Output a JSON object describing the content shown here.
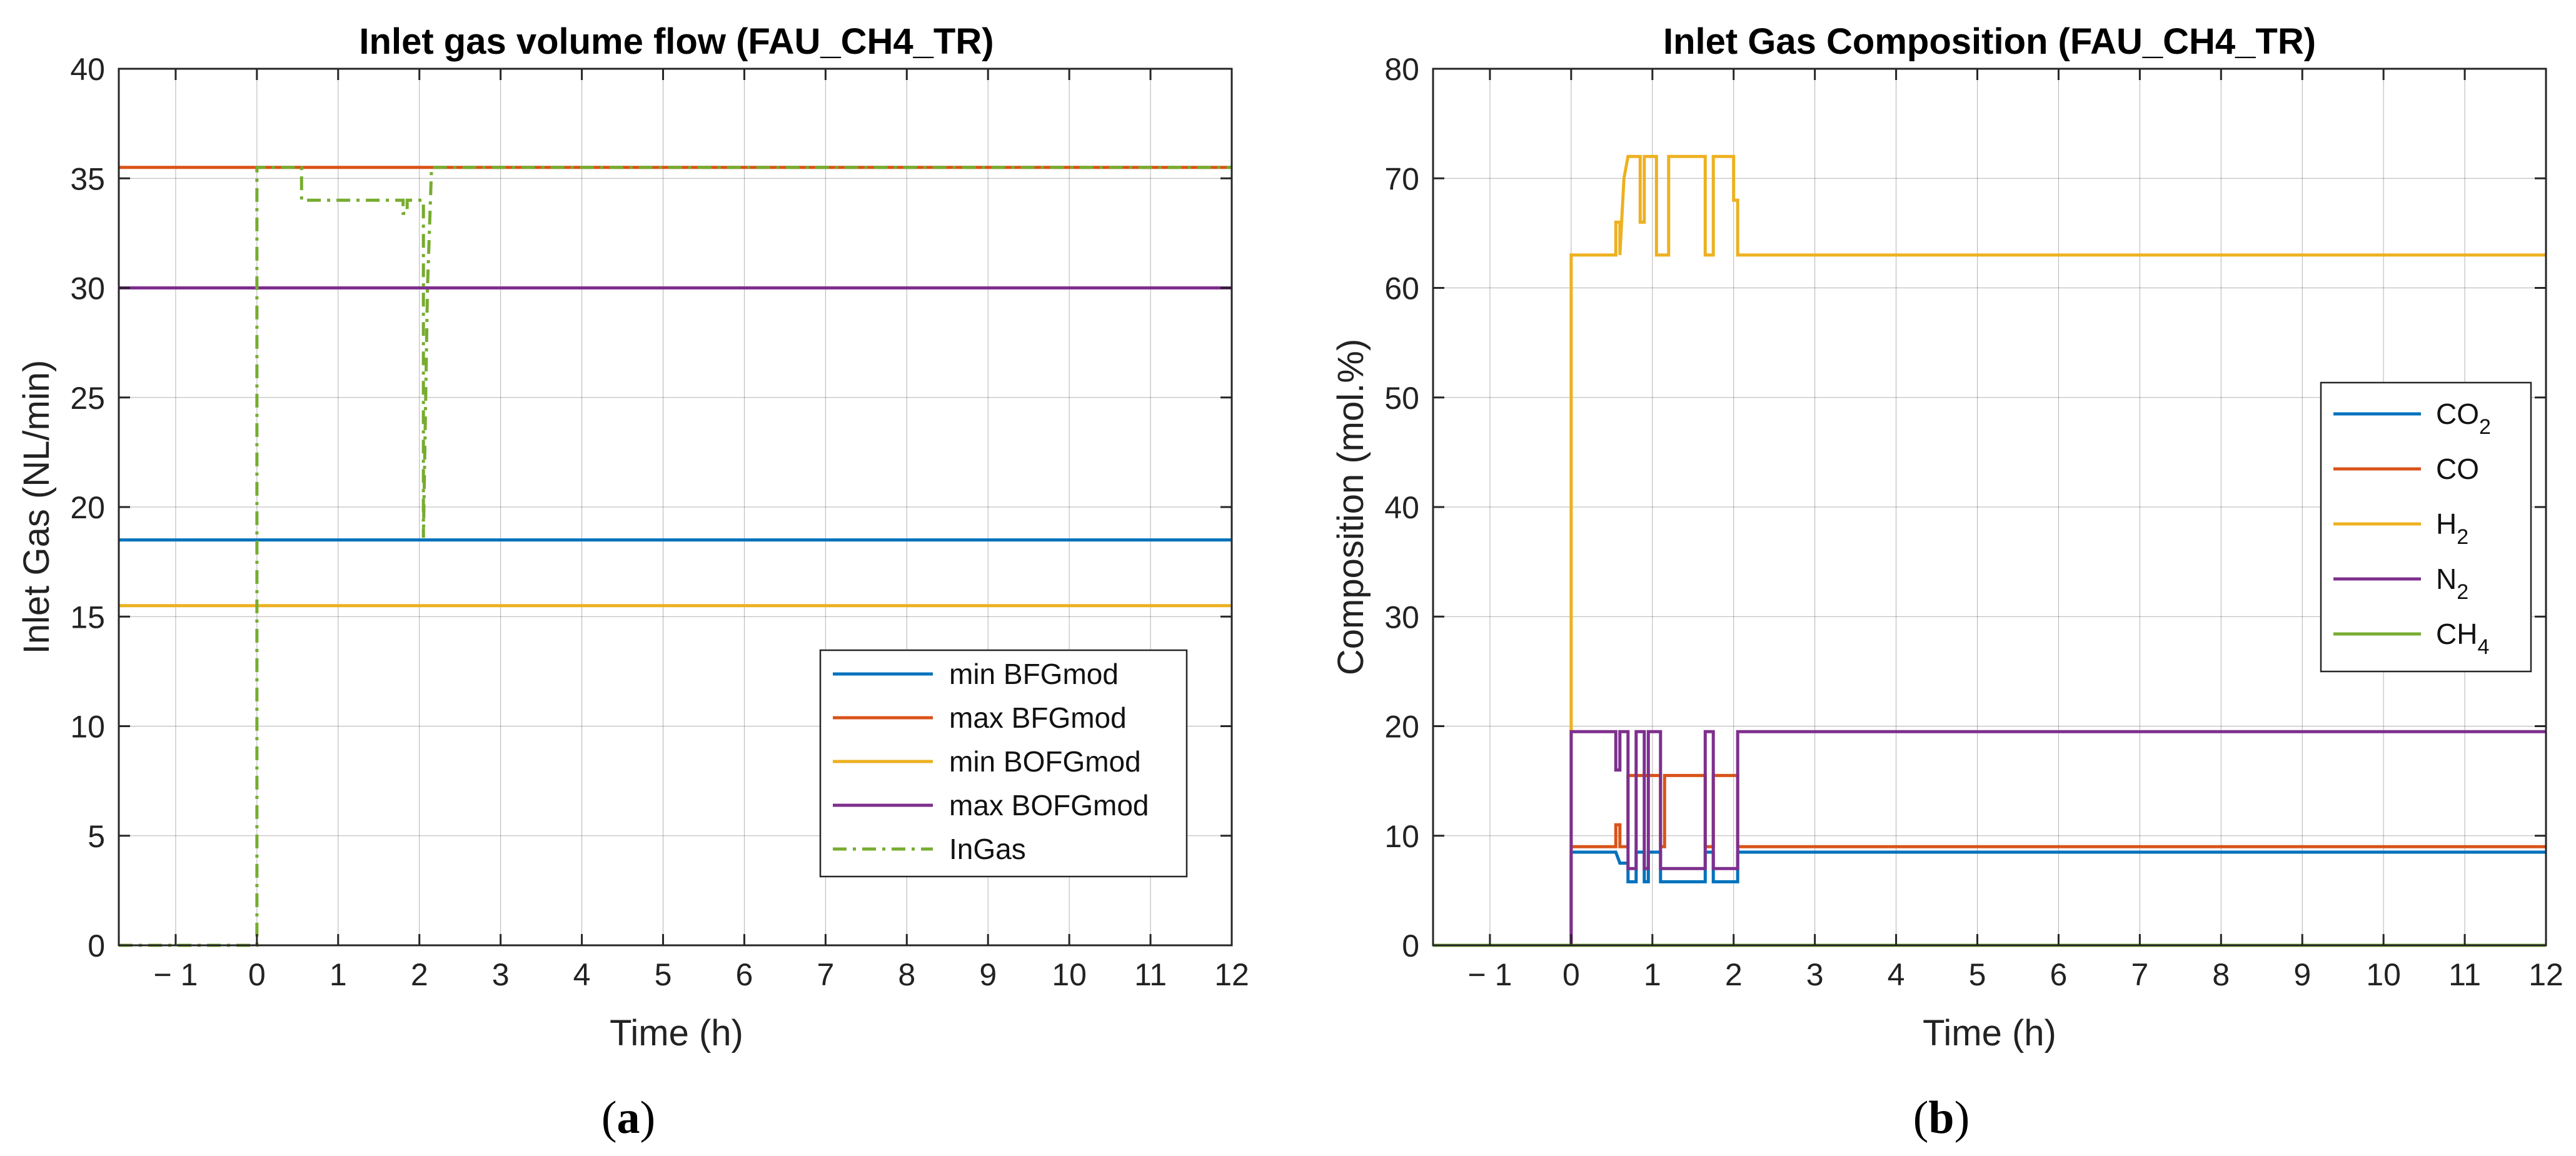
{
  "chart_data": [
    {
      "panel_label": {
        "open": "(",
        "letter": "a",
        "close": ")"
      },
      "type": "line",
      "title": "Inlet gas volume flow (FAU_CH4_TR)",
      "xlabel": "Time (h)",
      "ylabel": "Inlet Gas (NL/min)",
      "xlim": [
        -1.7,
        12
      ],
      "ylim": [
        0,
        40
      ],
      "xticks": [
        -1,
        0,
        1,
        2,
        3,
        4,
        5,
        6,
        7,
        8,
        9,
        10,
        11,
        12
      ],
      "xtick_labels": [
        "− 1",
        "0",
        "1",
        "2",
        "3",
        "4",
        "5",
        "6",
        "7",
        "8",
        "9",
        "10",
        "11",
        "12"
      ],
      "yticks": [
        0,
        5,
        10,
        15,
        20,
        25,
        30,
        35,
        40
      ],
      "ytick_labels": [
        "0",
        "5",
        "10",
        "15",
        "20",
        "25",
        "30",
        "35",
        "40"
      ],
      "grid": true,
      "legend_position": "bottom-right",
      "series": [
        {
          "name": "min BFGmod",
          "color": "#0072BD",
          "style": "solid",
          "x": [
            -1.7,
            12
          ],
          "y": [
            18.5,
            18.5
          ]
        },
        {
          "name": "max BFGmod",
          "color": "#D95319",
          "style": "solid",
          "x": [
            -1.7,
            12
          ],
          "y": [
            35.5,
            35.5
          ]
        },
        {
          "name": "min BOFGmod",
          "color": "#EDB120",
          "style": "solid",
          "x": [
            -1.7,
            12
          ],
          "y": [
            15.5,
            15.5
          ]
        },
        {
          "name": "max BOFGmod",
          "color": "#7E2F8E",
          "style": "solid",
          "x": [
            -1.7,
            12
          ],
          "y": [
            30,
            30
          ]
        },
        {
          "name": "InGas",
          "color": "#77AC30",
          "style": "dashdot",
          "x": [
            -1.7,
            0,
            0,
            0.55,
            0.55,
            1.8,
            1.8,
            1.85,
            1.85,
            2.05,
            2.05,
            2.1,
            2.15,
            12
          ],
          "y": [
            0,
            0,
            35.5,
            35.5,
            34,
            34,
            33.4,
            33.4,
            34,
            34,
            18.6,
            30,
            35.5,
            35.5
          ]
        }
      ]
    },
    {
      "panel_label": {
        "open": "(",
        "letter": "b",
        "close": ")"
      },
      "type": "line",
      "title": "Inlet Gas Composition (FAU_CH4_TR)",
      "xlabel": "Time (h)",
      "ylabel": "Composition (mol.%)",
      "xlim": [
        -1.7,
        12
      ],
      "ylim": [
        0,
        80
      ],
      "xticks": [
        -1,
        0,
        1,
        2,
        3,
        4,
        5,
        6,
        7,
        8,
        9,
        10,
        11,
        12
      ],
      "xtick_labels": [
        "− 1",
        "0",
        "1",
        "2",
        "3",
        "4",
        "5",
        "6",
        "7",
        "8",
        "9",
        "10",
        "11",
        "12"
      ],
      "yticks": [
        0,
        10,
        20,
        30,
        40,
        50,
        60,
        70,
        80
      ],
      "ytick_labels": [
        "0",
        "10",
        "20",
        "30",
        "40",
        "50",
        "60",
        "70",
        "80"
      ],
      "grid": true,
      "legend_position": "right",
      "series": [
        {
          "name": "CO",
          "sub": "2",
          "color": "#0072BD",
          "style": "solid",
          "x": [
            -1.7,
            0,
            0,
            0.55,
            0.6,
            0.7,
            0.7,
            0.8,
            0.8,
            0.9,
            0.9,
            0.95,
            0.95,
            1.1,
            1.1,
            1.65,
            1.65,
            1.75,
            1.75,
            2.05,
            2.05,
            12
          ],
          "y": [
            0,
            0,
            8.5,
            8.5,
            7.5,
            7.5,
            5.8,
            5.8,
            8.5,
            8.5,
            5.8,
            5.8,
            8.5,
            8.5,
            5.8,
            5.8,
            8.5,
            8.5,
            5.8,
            5.8,
            8.5,
            8.5
          ]
        },
        {
          "name": "CO",
          "sub": "",
          "color": "#D95319",
          "style": "solid",
          "x": [
            -1.7,
            0,
            0,
            0.55,
            0.55,
            0.6,
            0.6,
            0.7,
            0.7,
            1.1,
            1.1,
            1.15,
            1.15,
            1.65,
            1.65,
            1.75,
            1.75,
            2.05,
            2.05,
            12
          ],
          "y": [
            0,
            0,
            9,
            9,
            11,
            11,
            9,
            9,
            15.5,
            15.5,
            9,
            9,
            15.5,
            15.5,
            9,
            9,
            15.5,
            15.5,
            9,
            9
          ]
        },
        {
          "name": "H",
          "sub": "2",
          "color": "#EDB120",
          "style": "solid",
          "x": [
            -1.7,
            0,
            0,
            0.55,
            0.55,
            0.6,
            0.6,
            0.65,
            0.7,
            0.85,
            0.85,
            0.9,
            0.9,
            1.05,
            1.05,
            1.2,
            1.2,
            1.65,
            1.65,
            1.75,
            1.75,
            2.0,
            2.0,
            2.05,
            2.05,
            12
          ],
          "y": [
            0,
            0,
            63,
            63,
            66,
            66,
            63,
            70,
            72,
            72,
            66,
            66,
            72,
            72,
            63,
            63,
            72,
            72,
            63,
            63,
            72,
            72,
            68,
            68,
            63,
            63
          ]
        },
        {
          "name": "N",
          "sub": "2",
          "color": "#7E2F8E",
          "style": "solid",
          "x": [
            -1.7,
            0,
            0,
            0.55,
            0.55,
            0.6,
            0.6,
            0.7,
            0.7,
            0.8,
            0.8,
            0.9,
            0.9,
            0.95,
            0.95,
            1.1,
            1.1,
            1.65,
            1.65,
            1.75,
            1.75,
            2.05,
            2.05,
            12
          ],
          "y": [
            0,
            0,
            19.5,
            19.5,
            16,
            16,
            19.5,
            19.5,
            7,
            7,
            19.5,
            19.5,
            7,
            7,
            19.5,
            19.5,
            7,
            7,
            19.5,
            19.5,
            7,
            7,
            19.5,
            19.5
          ]
        },
        {
          "name": "CH",
          "sub": "4",
          "color": "#77AC30",
          "style": "solid",
          "x": [
            -1.7,
            12
          ],
          "y": [
            0,
            0
          ]
        }
      ]
    }
  ]
}
